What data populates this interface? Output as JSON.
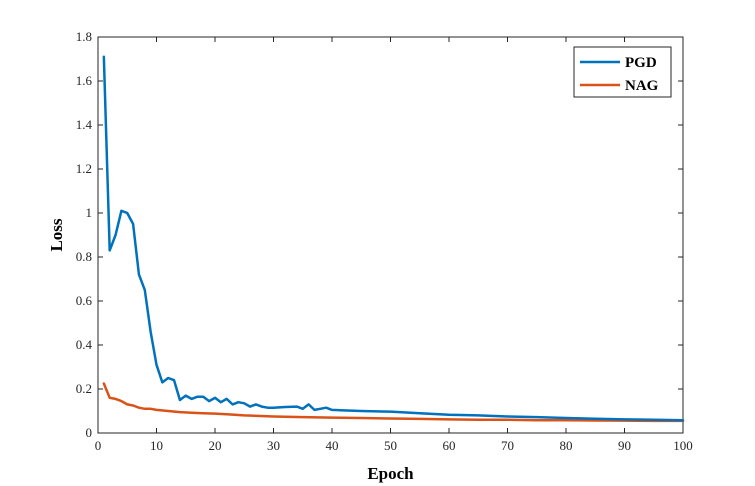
{
  "chart_data": {
    "type": "line",
    "title": "",
    "xlabel": "Epoch",
    "ylabel": "Loss",
    "xlim": [
      0,
      100
    ],
    "ylim": [
      0,
      1.8
    ],
    "xticks": [
      0,
      10,
      20,
      30,
      40,
      50,
      60,
      70,
      80,
      90,
      100
    ],
    "yticks": [
      0,
      0.2,
      0.4,
      0.6,
      0.8,
      1,
      1.2,
      1.4,
      1.6,
      1.8
    ],
    "xtick_labels": [
      "0",
      "10",
      "20",
      "30",
      "40",
      "50",
      "60",
      "70",
      "80",
      "90",
      "100"
    ],
    "ytick_labels": [
      "0",
      "0.2",
      "0.4",
      "0.6",
      "0.8",
      "1",
      "1.2",
      "1.4",
      "1.6",
      "1.8"
    ],
    "grid": false,
    "legend_position": "top-right",
    "series": [
      {
        "name": "PGD",
        "color": "#0072BD",
        "x": [
          1,
          2,
          3,
          4,
          5,
          6,
          7,
          8,
          9,
          10,
          11,
          12,
          13,
          14,
          15,
          16,
          17,
          18,
          19,
          20,
          21,
          22,
          23,
          24,
          25,
          26,
          27,
          28,
          29,
          30,
          32,
          34,
          35,
          36,
          37,
          38,
          39,
          40,
          42,
          45,
          50,
          55,
          60,
          65,
          70,
          75,
          80,
          85,
          90,
          95,
          100
        ],
        "y": [
          1.71,
          0.83,
          0.9,
          1.01,
          1.0,
          0.95,
          0.72,
          0.65,
          0.46,
          0.31,
          0.23,
          0.25,
          0.24,
          0.15,
          0.17,
          0.155,
          0.165,
          0.165,
          0.145,
          0.16,
          0.14,
          0.155,
          0.13,
          0.14,
          0.135,
          0.12,
          0.13,
          0.12,
          0.115,
          0.115,
          0.118,
          0.12,
          0.11,
          0.13,
          0.105,
          0.11,
          0.115,
          0.105,
          0.103,
          0.1,
          0.097,
          0.09,
          0.083,
          0.08,
          0.075,
          0.072,
          0.068,
          0.065,
          0.062,
          0.06,
          0.058
        ]
      },
      {
        "name": "NAG",
        "color": "#D95319",
        "x": [
          1,
          2,
          3,
          4,
          5,
          6,
          7,
          8,
          9,
          10,
          12,
          14,
          16,
          18,
          20,
          22,
          25,
          30,
          35,
          40,
          45,
          50,
          55,
          60,
          65,
          70,
          75,
          80,
          85,
          90,
          95,
          100
        ],
        "y": [
          0.225,
          0.16,
          0.155,
          0.145,
          0.13,
          0.125,
          0.115,
          0.11,
          0.11,
          0.105,
          0.1,
          0.095,
          0.092,
          0.09,
          0.088,
          0.085,
          0.08,
          0.075,
          0.072,
          0.07,
          0.068,
          0.066,
          0.064,
          0.062,
          0.06,
          0.06,
          0.058,
          0.058,
          0.057,
          0.056,
          0.055,
          0.055
        ]
      }
    ]
  }
}
